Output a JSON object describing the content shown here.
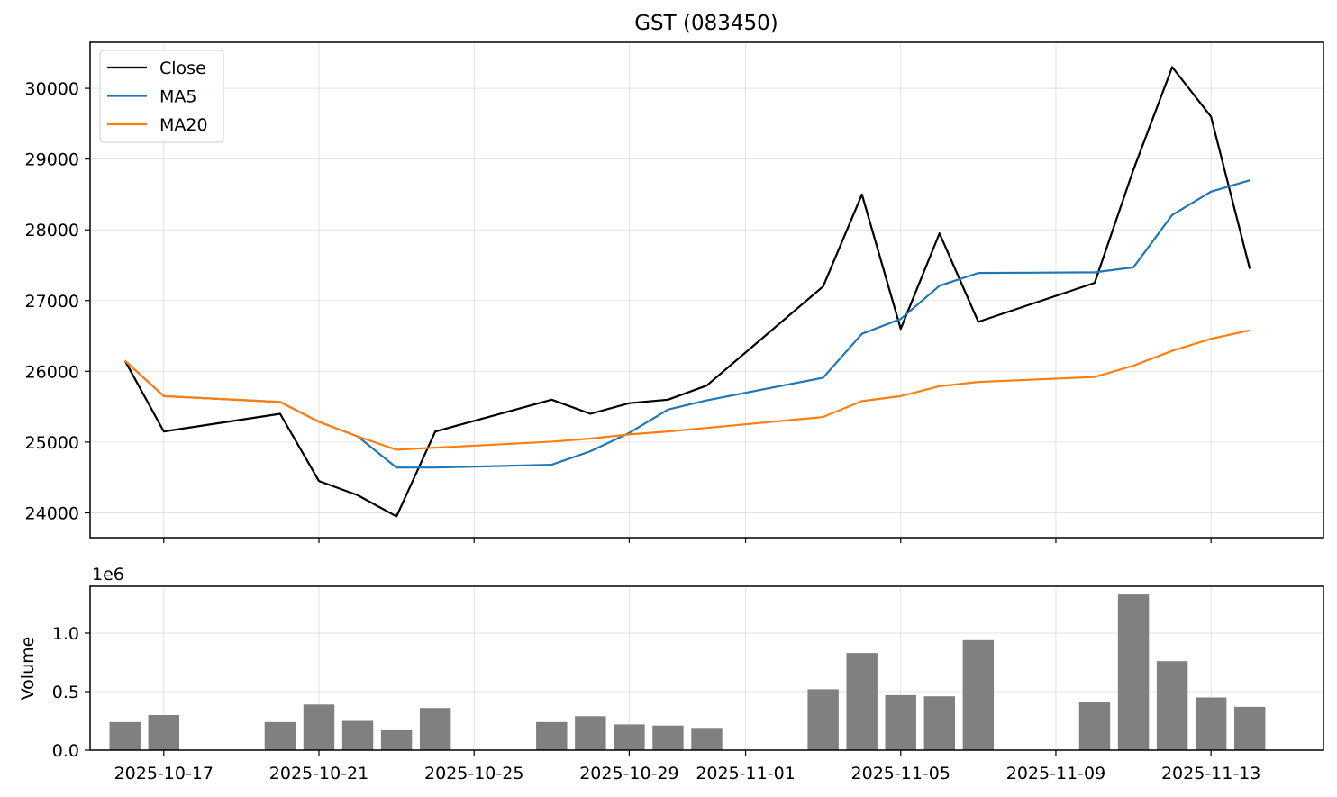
{
  "chart_data": {
    "type": "line",
    "title": "GST (083450)",
    "x": [
      "2025-10-16",
      "2025-10-17",
      "2025-10-20",
      "2025-10-21",
      "2025-10-22",
      "2025-10-23",
      "2025-10-24",
      "2025-10-27",
      "2025-10-28",
      "2025-10-29",
      "2025-10-30",
      "2025-10-31",
      "2025-11-03",
      "2025-11-04",
      "2025-11-05",
      "2025-11-06",
      "2025-11-07",
      "2025-11-10",
      "2025-11-11",
      "2025-11-12",
      "2025-11-13",
      "2025-11-14"
    ],
    "series": [
      {
        "name": "Close",
        "color": "#000000",
        "values": [
          26150,
          25150,
          25400,
          24450,
          24250,
          23950,
          25150,
          25600,
          25400,
          25550,
          25600,
          25800,
          27200,
          28500,
          26600,
          27950,
          26700,
          27250,
          28850,
          30300,
          29600,
          27450
        ]
      },
      {
        "name": "MA5",
        "color": "#1f77b4",
        "values": [
          26150,
          25650,
          25567,
          25287,
          25080,
          24640,
          24640,
          24680,
          24870,
          25130,
          25460,
          25590,
          25910,
          26530,
          26740,
          27210,
          27390,
          27400,
          27470,
          28210,
          28540,
          28700
        ]
      },
      {
        "name": "MA20",
        "color": "#ff7f0e",
        "values": [
          26150,
          25650,
          25567,
          25287,
          25080,
          24892,
          24921,
          25006,
          25050,
          25109,
          25150,
          25200,
          25355,
          25580,
          25650,
          25790,
          25850,
          25920,
          26080,
          26290,
          26460,
          26580
        ]
      }
    ],
    "xticks": [
      "2025-10-17",
      "2025-10-21",
      "2025-10-25",
      "2025-10-29",
      "2025-11-01",
      "2025-11-05",
      "2025-11-09",
      "2025-11-13"
    ],
    "ylim": [
      23650,
      30650
    ],
    "yticks": [
      "24000",
      "25000",
      "26000",
      "27000",
      "28000",
      "29000",
      "30000"
    ],
    "grid": true,
    "legend_position": "top-left",
    "volume": {
      "ylabel": "Volume",
      "offset_label": "1e6",
      "ylim": [
        0,
        1.4
      ],
      "yticks": [
        "0.0",
        "0.5",
        "1.0"
      ],
      "color": "#808080",
      "values": [
        0.24,
        0.3,
        0.24,
        0.39,
        0.25,
        0.17,
        0.36,
        0.24,
        0.29,
        0.22,
        0.21,
        0.19,
        0.52,
        0.83,
        0.47,
        0.46,
        0.94,
        0.41,
        1.33,
        0.76,
        0.45,
        0.37
      ]
    }
  }
}
